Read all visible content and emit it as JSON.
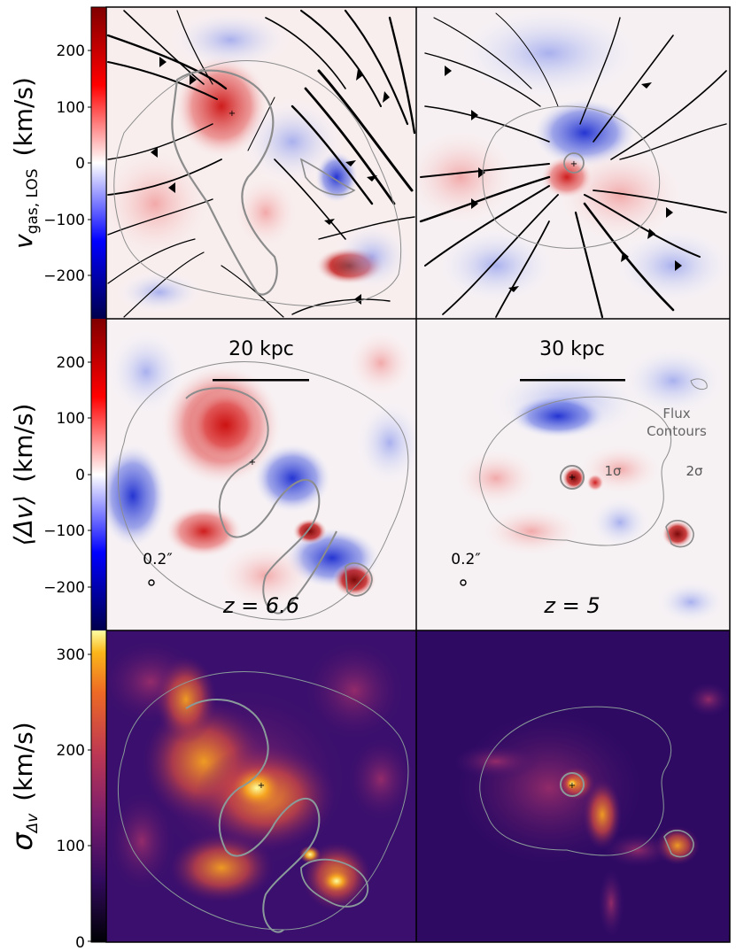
{
  "rows": [
    {
      "ylabel_main": "v",
      "ylabel_sub": "gas, LOS",
      "ylabel_unit": "(km/s)",
      "ticks": [
        "200",
        "100",
        "0",
        "−100",
        "−200"
      ],
      "colormap": "seismic"
    },
    {
      "ylabel_main": "⟨Δv⟩",
      "ylabel_sub": "",
      "ylabel_unit": "(km/s)",
      "ticks": [
        "200",
        "100",
        "0",
        "−100",
        "−200"
      ],
      "colormap": "seismic"
    },
    {
      "ylabel_main": "σ",
      "ylabel_sub": "Δv",
      "ylabel_unit": "(km/s)",
      "ticks": [
        "300",
        "200",
        "100",
        "0"
      ],
      "colormap": "inferno"
    }
  ],
  "annotations": {
    "scale_left": "20 kpc",
    "scale_right": "30 kpc",
    "beam_left": "0.2″",
    "beam_right": "0.2″",
    "redshift_left": "z = 6.6",
    "redshift_right": "z = 5",
    "flux_label_line1": "Flux",
    "flux_label_line2": "Contours",
    "sigma1": "1σ",
    "sigma2": "2σ"
  },
  "colors": {
    "red": "#d62020",
    "blue": "#2233cc",
    "contour": "#8c8c8c"
  }
}
